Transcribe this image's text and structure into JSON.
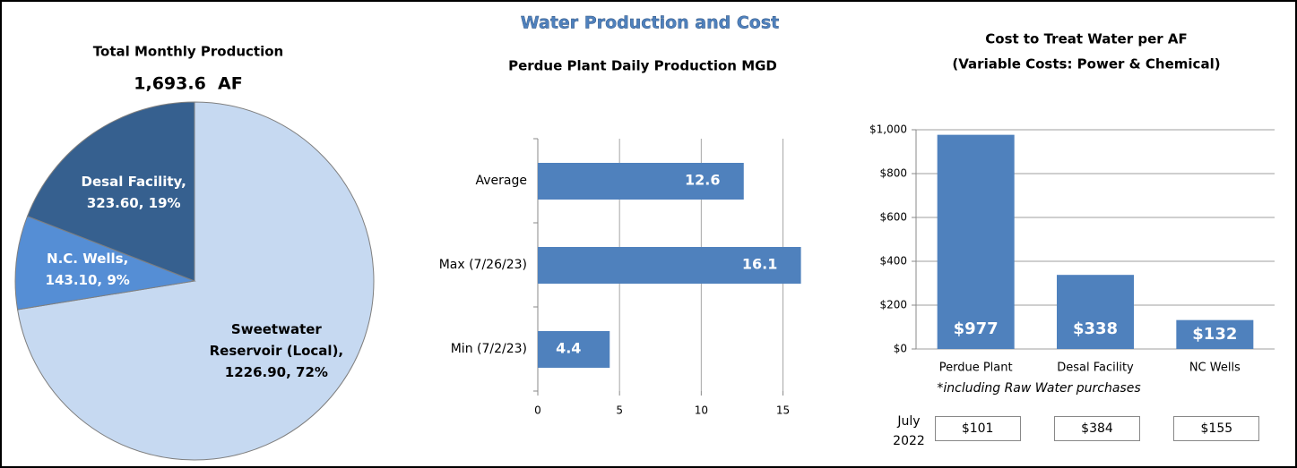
{
  "title": "Water Production and Cost",
  "chart_data": [
    {
      "type": "pie",
      "title": "Total Monthly Production",
      "subtitle": "1,693.6  AF",
      "values": [
        1226.9,
        143.1,
        323.6
      ],
      "value_labels": [
        "Sweetwater Reservoir (Local), 1226.90, 72%",
        "N.C. Wells, 143.10, 9%",
        "Desal Facility, 323.60, 19%"
      ],
      "colors": [
        "#c6d9f1",
        "#558ed5",
        "#36608f"
      ]
    },
    {
      "type": "hbar",
      "title": "Perdue Plant Daily Production MGD",
      "categories": [
        "Average",
        "Max (7/26/23)",
        "Min (7/2/23)"
      ],
      "values": [
        12.6,
        16.1,
        4.4
      ],
      "color": "#4f81bd",
      "xlim": [
        0,
        17
      ],
      "xticks": [
        0,
        5,
        10,
        15
      ],
      "grid": true
    },
    {
      "type": "bar",
      "title": "Cost to Treat Water per AF",
      "subtitle": "(Variable Costs: Power & Chemical)",
      "categories": [
        "Perdue Plant",
        "Desal Facility",
        "NC Wells"
      ],
      "values": [
        977,
        338,
        132
      ],
      "value_labels": [
        "$977",
        "$338",
        "$132"
      ],
      "color": "#4f81bd",
      "ylim": [
        0,
        1000
      ],
      "yticks": [
        {
          "value": 0,
          "label": "$0"
        },
        {
          "value": 200,
          "label": "$200"
        },
        {
          "value": 400,
          "label": "$400"
        },
        {
          "value": 600,
          "label": "$600"
        },
        {
          "value": 800,
          "label": "$800"
        },
        {
          "value": 1000,
          "label": "$1,000"
        }
      ],
      "grid": true,
      "annotation": "*including Raw Water purchases",
      "comparison": {
        "label": "July 2022",
        "values": [
          "$101",
          "$384",
          "$155"
        ]
      }
    }
  ]
}
